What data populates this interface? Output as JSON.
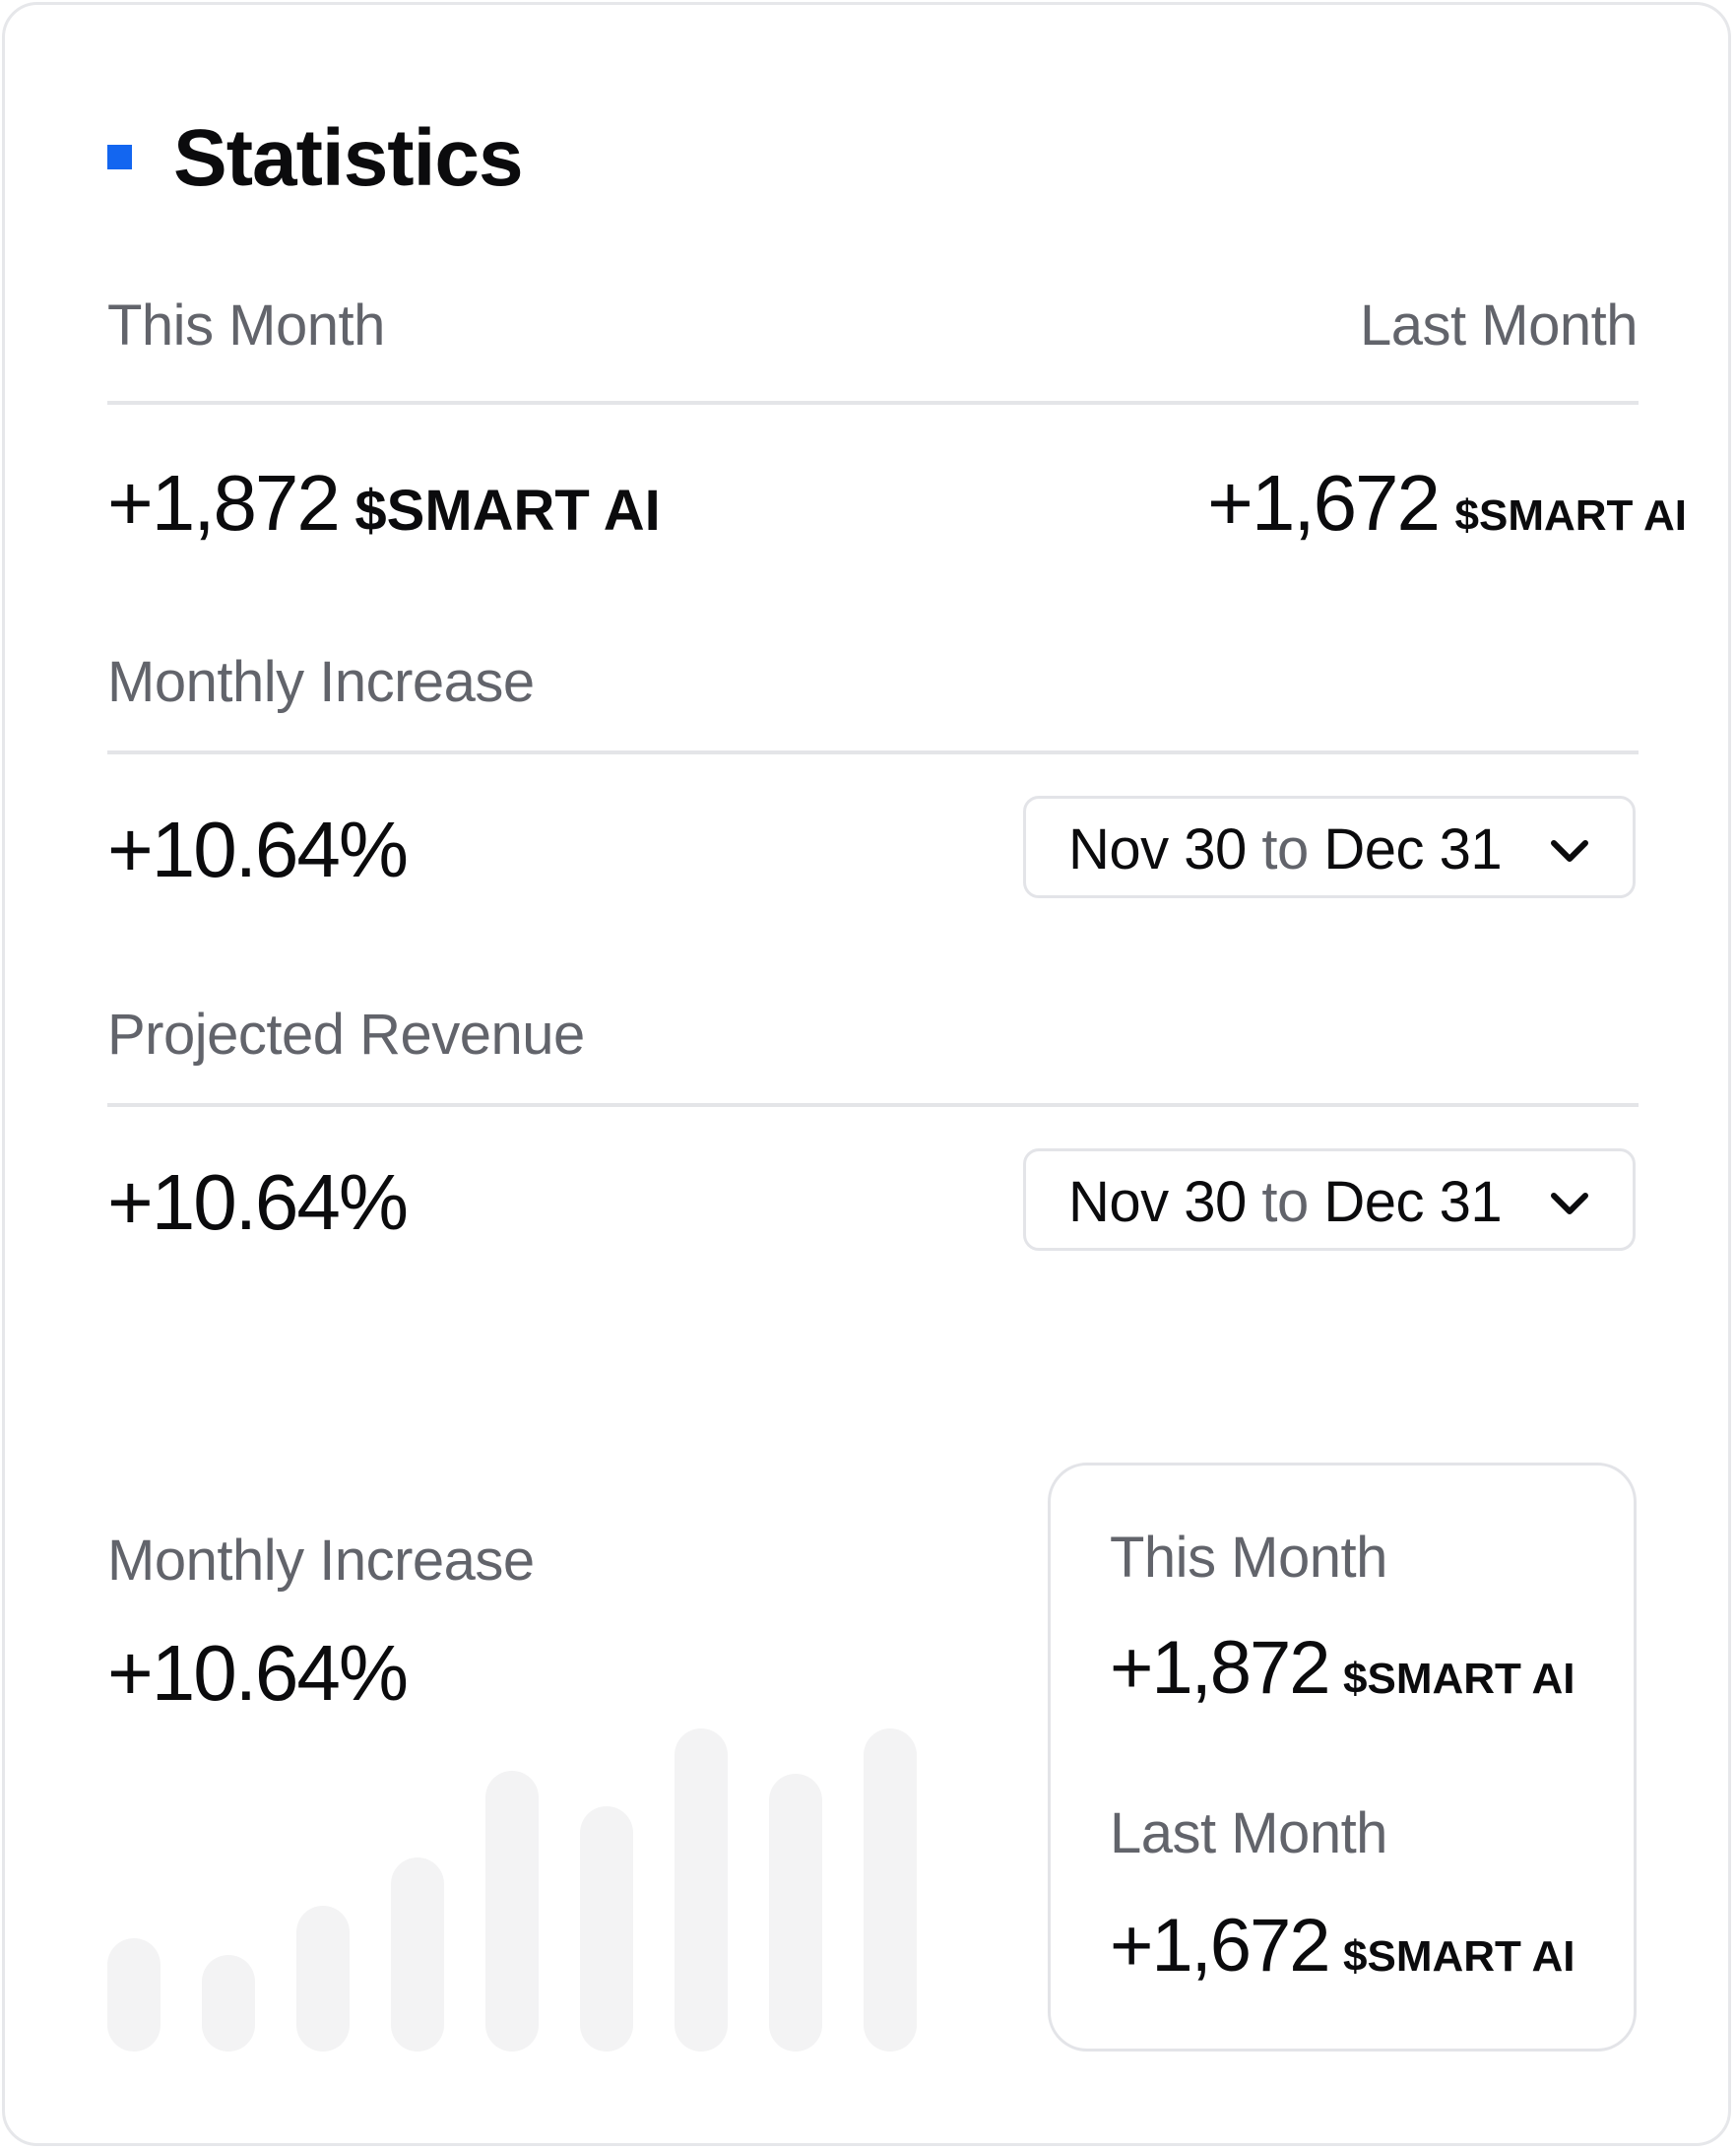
{
  "header": {
    "title": "Statistics",
    "accent_color": "#1366f0"
  },
  "comparison": {
    "this_month_label": "This Month",
    "last_month_label": "Last Month",
    "this_month_value": "+1,872",
    "this_month_unit": "$SMART AI",
    "last_month_value": "+1,672",
    "last_month_unit": "$SMART AI"
  },
  "monthly_increase": {
    "label": "Monthly Increase",
    "value": "+10.64%",
    "range_start": "Nov 30",
    "range_sep": "to",
    "range_end": "Dec 31",
    "dropdown_icon": "chevron-down-icon"
  },
  "projected_revenue": {
    "label": "Projected Revenue",
    "value": "+10.64%",
    "range_start": "Nov 30",
    "range_sep": "to",
    "range_end": "Dec 31",
    "dropdown_icon": "chevron-down-icon"
  },
  "bottom": {
    "label": "Monthly Increase",
    "value": "+10.64%"
  },
  "chart_data": {
    "type": "bar",
    "values": [
      0.35,
      0.3,
      0.45,
      0.6,
      0.87,
      0.76,
      1.0,
      0.86,
      1.0
    ],
    "color": "#f3f3f4"
  },
  "summary": {
    "this_month_label": "This Month",
    "this_month_value": "+1,872",
    "this_month_unit": "$SMART AI",
    "last_month_label": "Last Month",
    "last_month_value": "+1,672",
    "last_month_unit": "$SMART AI"
  }
}
